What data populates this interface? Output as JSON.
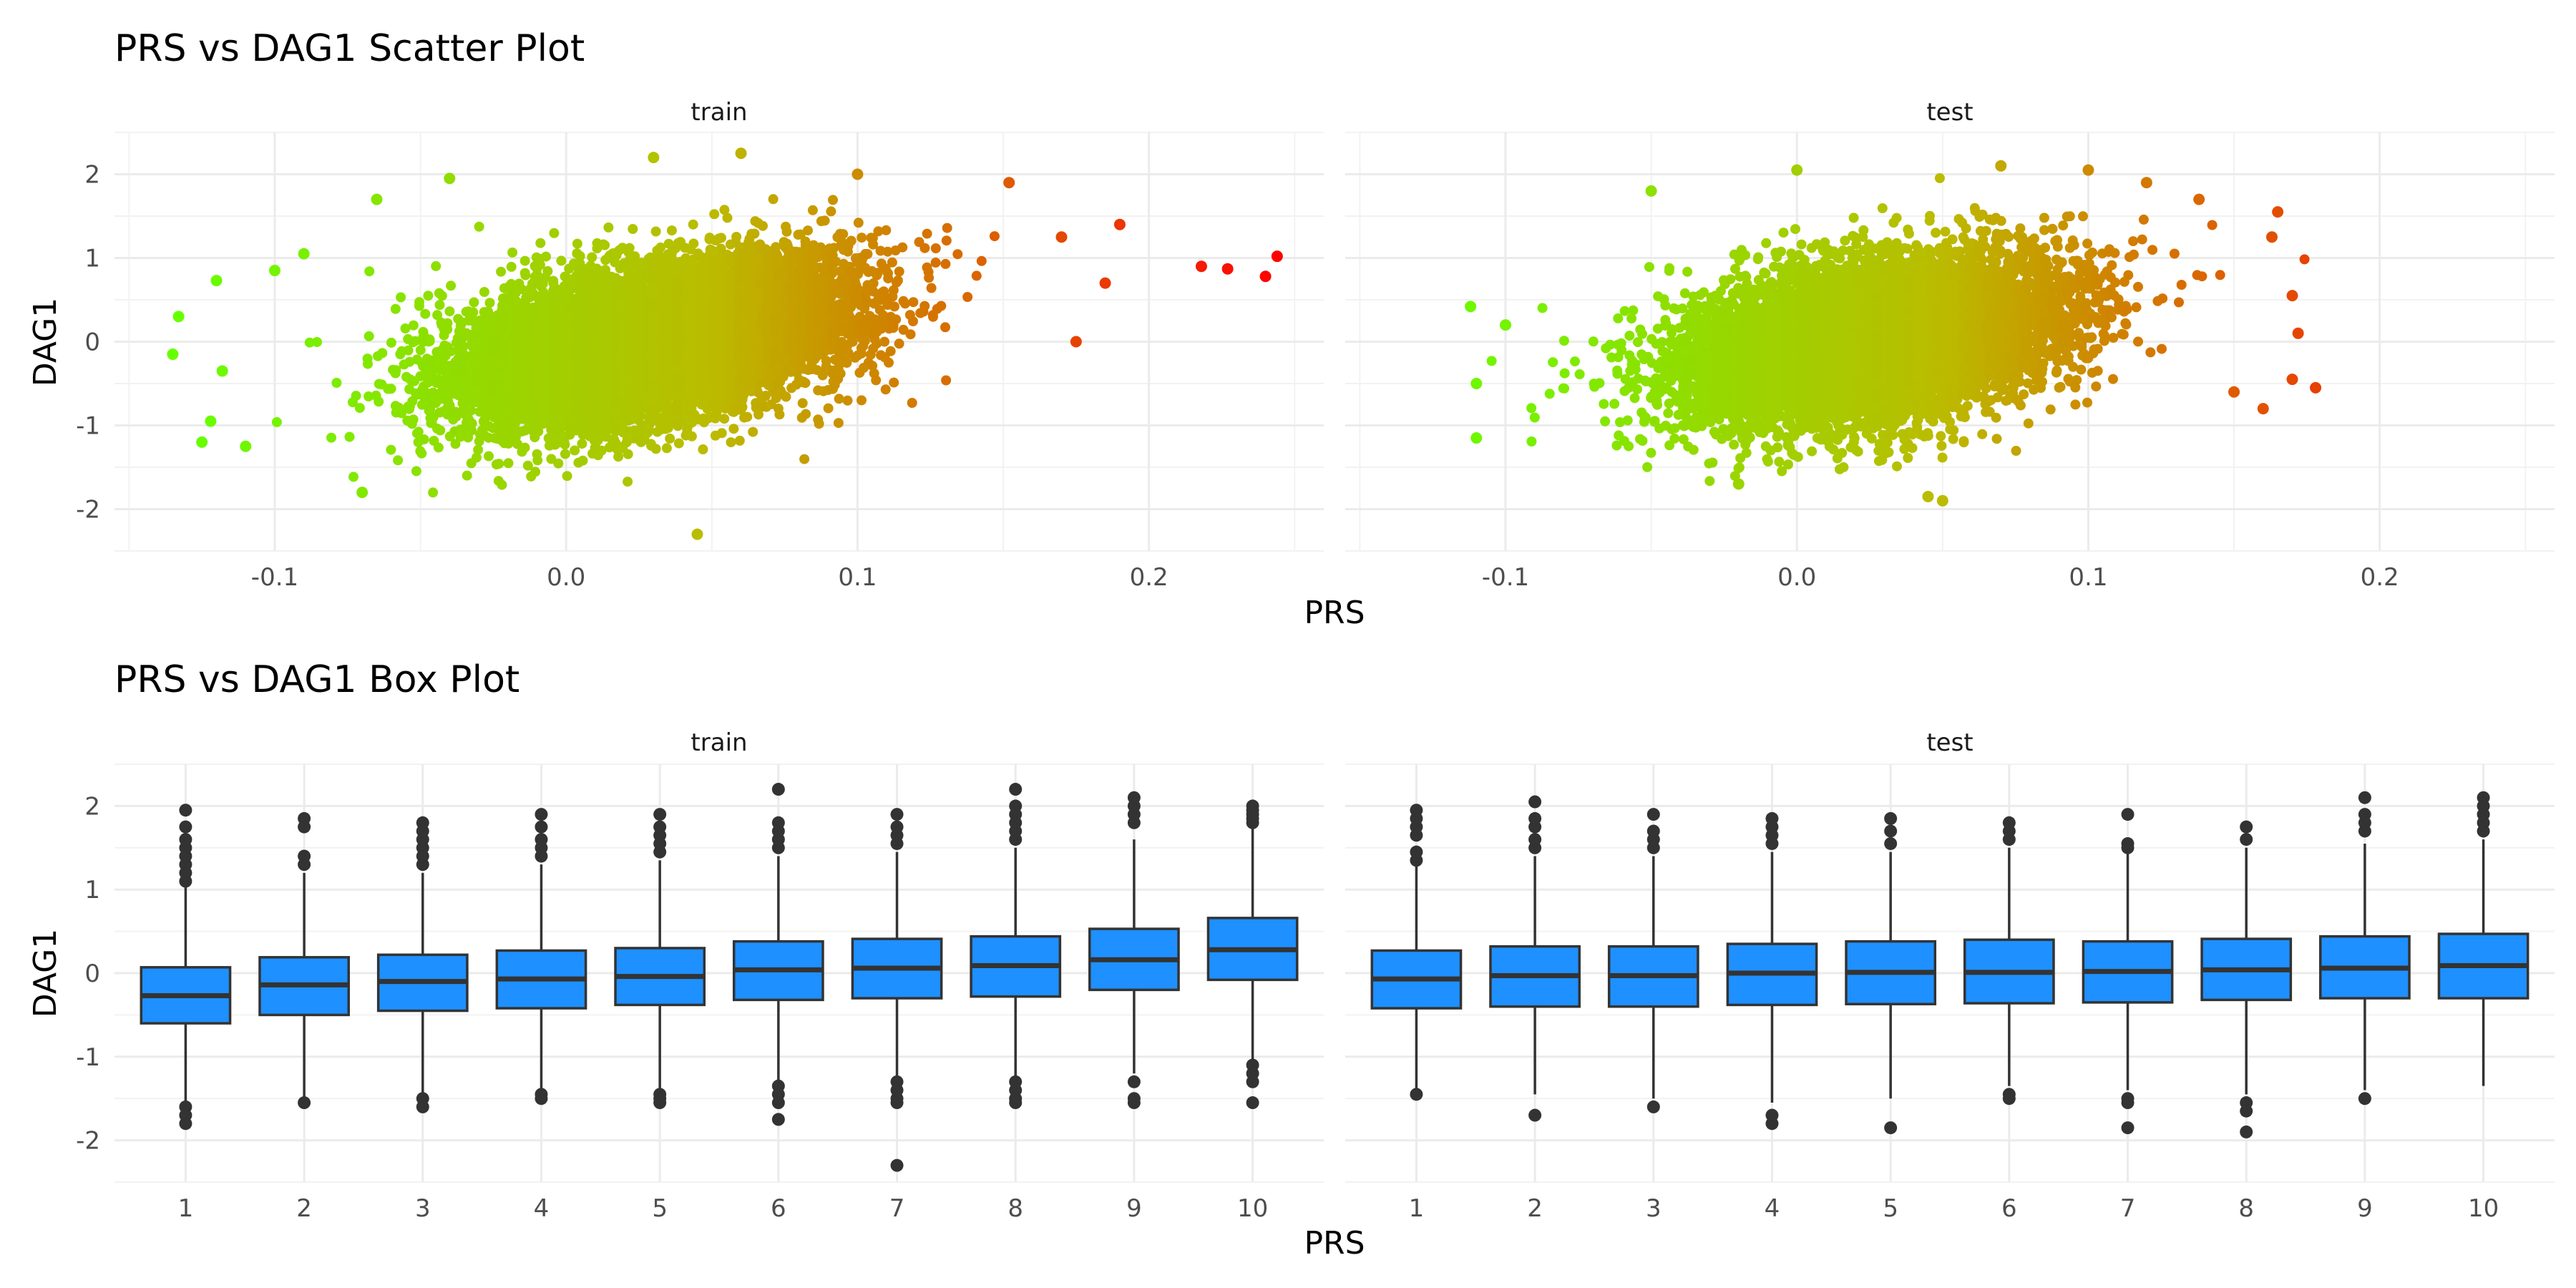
{
  "chart_data": [
    {
      "type": "scatter",
      "title": "PRS vs DAG1 Scatter Plot",
      "xlabel": "PRS",
      "ylabel": "DAG1",
      "xlim": [
        -0.155,
        0.26
      ],
      "ylim": [
        -2.5,
        2.5
      ],
      "x_ticks": [
        "-0.1",
        "0.0",
        "0.1",
        "0.2"
      ],
      "x_tick_values": [
        -0.1,
        0.0,
        0.1,
        0.2
      ],
      "y_ticks": [
        "-2",
        "-1",
        "0",
        "1",
        "2"
      ],
      "y_tick_values": [
        -2,
        -1,
        0,
        1,
        2
      ],
      "grid": true,
      "color_scale": {
        "low": "#66ff00",
        "mid": "#bbbb00",
        "high": "#ff0000",
        "low_value": -0.13,
        "mid_value": 0.05,
        "high_value": 0.245
      },
      "panels": [
        {
          "label": "train",
          "cloud": {
            "x_mean": 0.03,
            "x_sd": 0.033,
            "slope": 6.0,
            "resid_sd": 0.45
          },
          "points": [
            {
              "x": -0.135,
              "y": -0.15
            },
            {
              "x": -0.133,
              "y": 0.3
            },
            {
              "x": -0.12,
              "y": 0.73
            },
            {
              "x": -0.125,
              "y": -1.2
            },
            {
              "x": -0.122,
              "y": -0.95
            },
            {
              "x": -0.118,
              "y": -0.35
            },
            {
              "x": -0.11,
              "y": -1.25
            },
            {
              "x": -0.1,
              "y": 0.85
            },
            {
              "x": -0.09,
              "y": 1.05
            },
            {
              "x": -0.07,
              "y": -1.8
            },
            {
              "x": -0.065,
              "y": 1.7
            },
            {
              "x": -0.04,
              "y": 1.95
            },
            {
              "x": 0.03,
              "y": 2.2
            },
            {
              "x": 0.045,
              "y": -2.3
            },
            {
              "x": 0.06,
              "y": 2.25
            },
            {
              "x": 0.1,
              "y": 2.0
            },
            {
              "x": 0.152,
              "y": 1.9
            },
            {
              "x": 0.17,
              "y": 1.25
            },
            {
              "x": 0.175,
              "y": 0.0
            },
            {
              "x": 0.185,
              "y": 0.7
            },
            {
              "x": 0.19,
              "y": 1.4
            },
            {
              "x": 0.218,
              "y": 0.9
            },
            {
              "x": 0.227,
              "y": 0.87
            },
            {
              "x": 0.24,
              "y": 0.78
            },
            {
              "x": 0.244,
              "y": 1.02
            }
          ]
        },
        {
          "label": "test",
          "cloud": {
            "x_mean": 0.025,
            "x_sd": 0.032,
            "slope": 5.0,
            "resid_sd": 0.45
          },
          "points": [
            {
              "x": -0.112,
              "y": 0.42
            },
            {
              "x": -0.11,
              "y": -0.5
            },
            {
              "x": -0.11,
              "y": -1.15
            },
            {
              "x": -0.1,
              "y": 0.2
            },
            {
              "x": -0.05,
              "y": 1.8
            },
            {
              "x": 0.0,
              "y": 2.05
            },
            {
              "x": -0.02,
              "y": -1.7
            },
            {
              "x": 0.045,
              "y": -1.85
            },
            {
              "x": 0.05,
              "y": -1.9
            },
            {
              "x": 0.07,
              "y": 2.1
            },
            {
              "x": 0.1,
              "y": 2.05
            },
            {
              "x": 0.12,
              "y": 1.9
            },
            {
              "x": 0.138,
              "y": 1.7
            },
            {
              "x": 0.15,
              "y": -0.6
            },
            {
              "x": 0.16,
              "y": -0.8
            },
            {
              "x": 0.163,
              "y": 1.25
            },
            {
              "x": 0.165,
              "y": 1.55
            },
            {
              "x": 0.17,
              "y": 0.55
            },
            {
              "x": 0.17,
              "y": -0.45
            },
            {
              "x": 0.172,
              "y": 0.1
            },
            {
              "x": 0.178,
              "y": -0.55
            }
          ]
        }
      ]
    },
    {
      "type": "box",
      "title": "PRS vs DAG1 Box Plot",
      "xlabel": "PRS",
      "ylabel": "DAG1",
      "ylim": [
        -2.5,
        2.5
      ],
      "y_ticks": [
        "-2",
        "-1",
        "0",
        "1",
        "2"
      ],
      "y_tick_values": [
        -2,
        -1,
        0,
        1,
        2
      ],
      "categories": [
        "1",
        "2",
        "3",
        "4",
        "5",
        "6",
        "7",
        "8",
        "9",
        "10"
      ],
      "grid": true,
      "fill_color": "#1e90ff",
      "line_color": "#333333",
      "panels": [
        {
          "label": "train",
          "boxes": [
            {
              "q1": -0.6,
              "median": -0.27,
              "q3": 0.07,
              "whisker_low": -1.55,
              "whisker_high": 1.05,
              "outliers": [
                1.1,
                1.2,
                1.3,
                1.4,
                1.5,
                1.6,
                1.75,
                1.95,
                -1.6,
                -1.7,
                -1.8
              ]
            },
            {
              "q1": -0.5,
              "median": -0.14,
              "q3": 0.19,
              "whisker_low": -1.5,
              "whisker_high": 1.2,
              "outliers": [
                1.3,
                1.4,
                1.75,
                1.85,
                -1.55
              ]
            },
            {
              "q1": -0.45,
              "median": -0.1,
              "q3": 0.22,
              "whisker_low": -1.45,
              "whisker_high": 1.2,
              "outliers": [
                1.3,
                1.4,
                1.5,
                1.6,
                1.7,
                1.8,
                -1.5,
                -1.6
              ]
            },
            {
              "q1": -0.42,
              "median": -0.07,
              "q3": 0.27,
              "whisker_low": -1.4,
              "whisker_high": 1.3,
              "outliers": [
                1.4,
                1.5,
                1.6,
                1.75,
                1.9,
                -1.45,
                -1.5
              ]
            },
            {
              "q1": -0.38,
              "median": -0.04,
              "q3": 0.3,
              "whisker_low": -1.4,
              "whisker_high": 1.35,
              "outliers": [
                1.45,
                1.55,
                1.65,
                1.75,
                1.9,
                -1.45,
                -1.5,
                -1.55
              ]
            },
            {
              "q1": -0.32,
              "median": 0.04,
              "q3": 0.38,
              "whisker_low": -1.3,
              "whisker_high": 1.4,
              "outliers": [
                1.5,
                1.6,
                1.7,
                1.8,
                2.2,
                -1.35,
                -1.45,
                -1.55,
                -1.75
              ]
            },
            {
              "q1": -0.3,
              "median": 0.06,
              "q3": 0.41,
              "whisker_low": -1.25,
              "whisker_high": 1.45,
              "outliers": [
                1.55,
                1.65,
                1.75,
                1.9,
                -1.3,
                -1.4,
                -1.5,
                -1.55,
                -2.3
              ]
            },
            {
              "q1": -0.28,
              "median": 0.09,
              "q3": 0.44,
              "whisker_low": -1.25,
              "whisker_high": 1.5,
              "outliers": [
                1.6,
                1.7,
                1.8,
                1.9,
                2.0,
                2.2,
                -1.3,
                -1.4,
                -1.5,
                -1.55
              ]
            },
            {
              "q1": -0.2,
              "median": 0.16,
              "q3": 0.53,
              "whisker_low": -1.2,
              "whisker_high": 1.6,
              "outliers": [
                1.8,
                1.9,
                2.0,
                2.1,
                -1.3,
                -1.5,
                -1.55
              ]
            },
            {
              "q1": -0.08,
              "median": 0.28,
              "q3": 0.66,
              "whisker_low": -1.05,
              "whisker_high": 1.75,
              "outliers": [
                1.8,
                1.85,
                1.9,
                1.95,
                2.0,
                -1.1,
                -1.2,
                -1.3,
                -1.55
              ]
            }
          ]
        },
        {
          "label": "test",
          "boxes": [
            {
              "q1": -0.42,
              "median": -0.07,
              "q3": 0.27,
              "whisker_low": -1.4,
              "whisker_high": 1.3,
              "outliers": [
                1.35,
                1.45,
                1.65,
                1.75,
                1.85,
                1.95,
                -1.45
              ]
            },
            {
              "q1": -0.4,
              "median": -0.03,
              "q3": 0.32,
              "whisker_low": -1.45,
              "whisker_high": 1.4,
              "outliers": [
                1.5,
                1.6,
                1.75,
                1.85,
                2.05,
                -1.7
              ]
            },
            {
              "q1": -0.4,
              "median": -0.03,
              "q3": 0.32,
              "whisker_low": -1.5,
              "whisker_high": 1.4,
              "outliers": [
                1.5,
                1.6,
                1.7,
                1.9,
                -1.6
              ]
            },
            {
              "q1": -0.38,
              "median": 0.0,
              "q3": 0.35,
              "whisker_low": -1.55,
              "whisker_high": 1.45,
              "outliers": [
                1.55,
                1.65,
                1.75,
                1.85,
                -1.7,
                -1.8
              ]
            },
            {
              "q1": -0.37,
              "median": 0.01,
              "q3": 0.38,
              "whisker_low": -1.5,
              "whisker_high": 1.45,
              "outliers": [
                1.55,
                1.7,
                1.85,
                -1.85
              ]
            },
            {
              "q1": -0.36,
              "median": 0.01,
              "q3": 0.4,
              "whisker_low": -1.35,
              "whisker_high": 1.5,
              "outliers": [
                1.6,
                1.7,
                1.8,
                -1.45,
                -1.5
              ]
            },
            {
              "q1": -0.35,
              "median": 0.02,
              "q3": 0.38,
              "whisker_low": -1.4,
              "whisker_high": 1.45,
              "outliers": [
                1.5,
                1.55,
                1.9,
                -1.5,
                -1.55,
                -1.85
              ]
            },
            {
              "q1": -0.32,
              "median": 0.04,
              "q3": 0.41,
              "whisker_low": -1.45,
              "whisker_high": 1.5,
              "outliers": [
                1.6,
                1.75,
                -1.55,
                -1.65,
                -1.9
              ]
            },
            {
              "q1": -0.3,
              "median": 0.06,
              "q3": 0.44,
              "whisker_low": -1.4,
              "whisker_high": 1.55,
              "outliers": [
                1.7,
                1.8,
                1.9,
                2.1,
                -1.5
              ]
            },
            {
              "q1": -0.3,
              "median": 0.09,
              "q3": 0.47,
              "whisker_low": -1.35,
              "whisker_high": 1.6,
              "outliers": [
                1.7,
                1.8,
                1.9,
                2.0,
                2.1
              ]
            }
          ]
        }
      ]
    }
  ]
}
